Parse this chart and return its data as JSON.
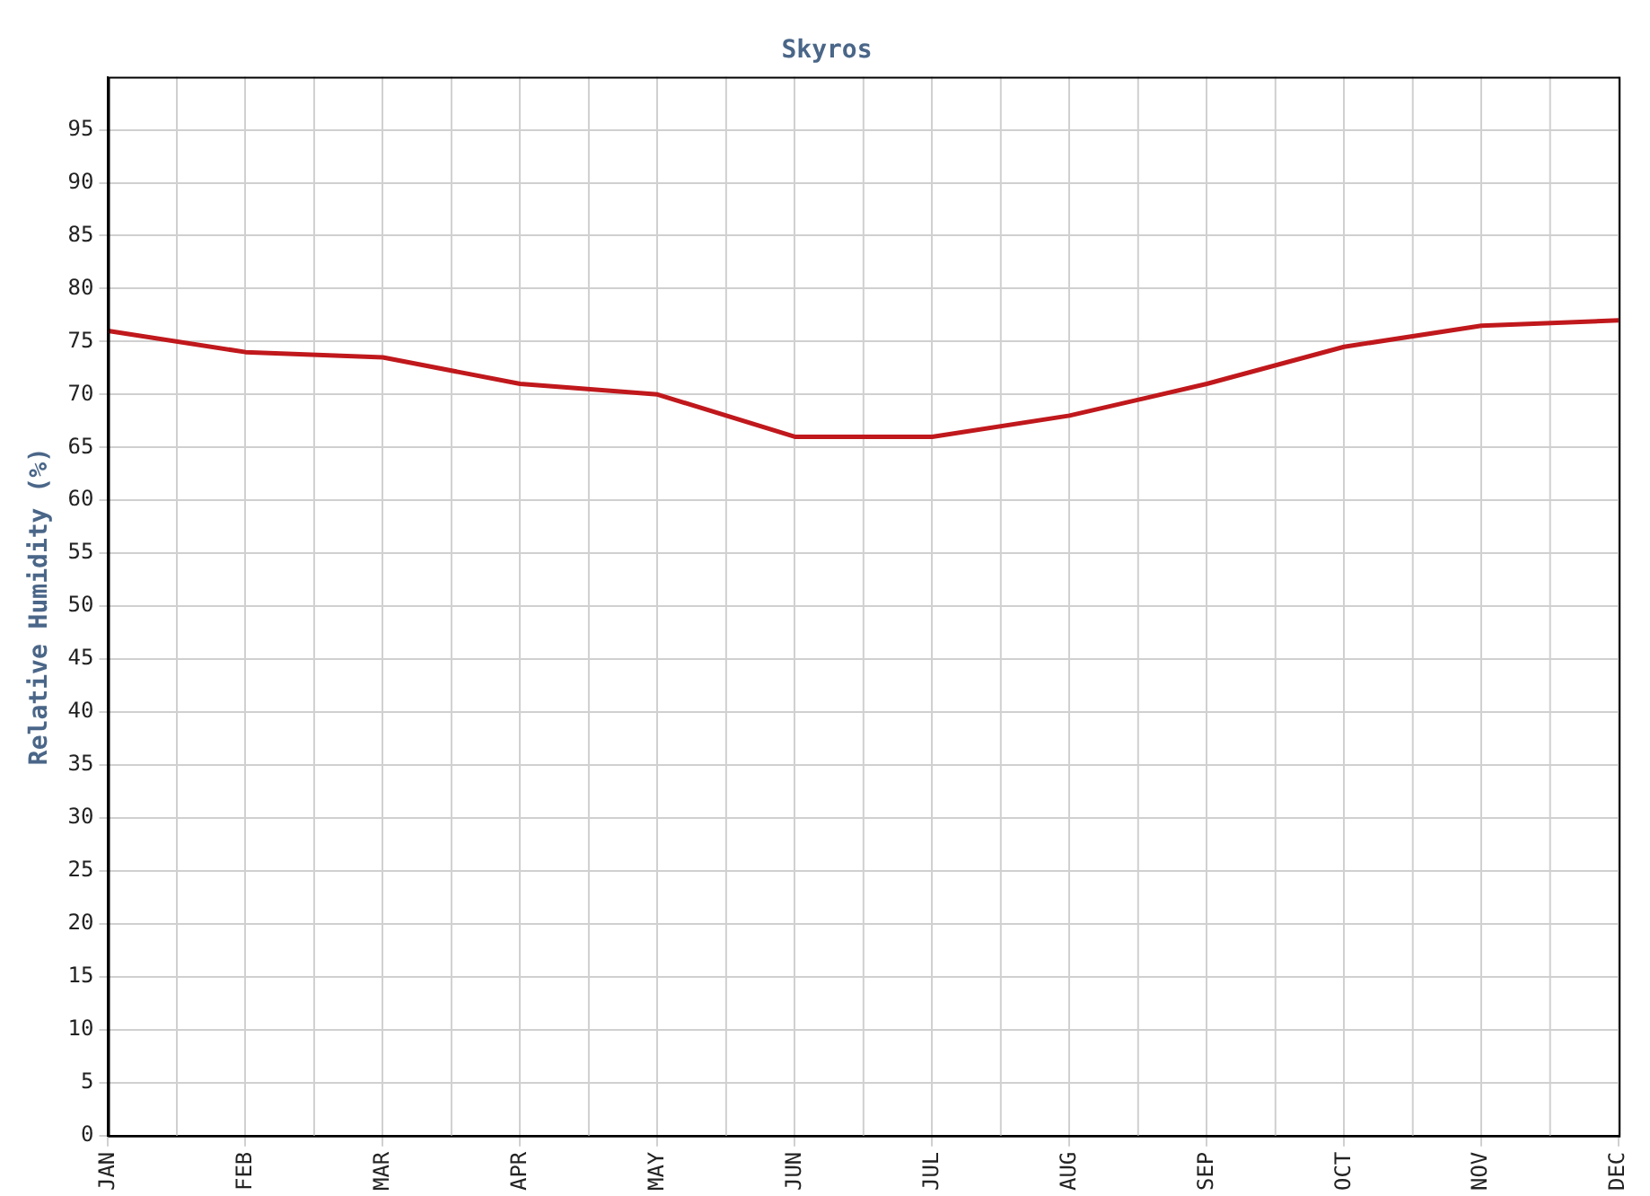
{
  "chart_data": {
    "type": "line",
    "title": "Skyros",
    "ylabel": "Relative Humidity (%)",
    "categories": [
      "JAN",
      "FEB",
      "MAR",
      "APR",
      "MAY",
      "JUN",
      "JUL",
      "AUG",
      "SEP",
      "OCT",
      "NOV",
      "DEC"
    ],
    "series": [
      {
        "color": "#c0181c",
        "values": [
          76,
          74,
          73.5,
          71,
          70,
          66,
          66,
          68,
          71,
          74.5,
          76.5,
          77
        ]
      }
    ],
    "ylim": [
      0,
      100
    ],
    "yticks": [
      0,
      5,
      10,
      15,
      20,
      25,
      30,
      35,
      40,
      45,
      50,
      55,
      60,
      65,
      70,
      75,
      80,
      85,
      90,
      95
    ],
    "grid": true,
    "legend": false,
    "marker": "none",
    "line_style": "solid"
  }
}
